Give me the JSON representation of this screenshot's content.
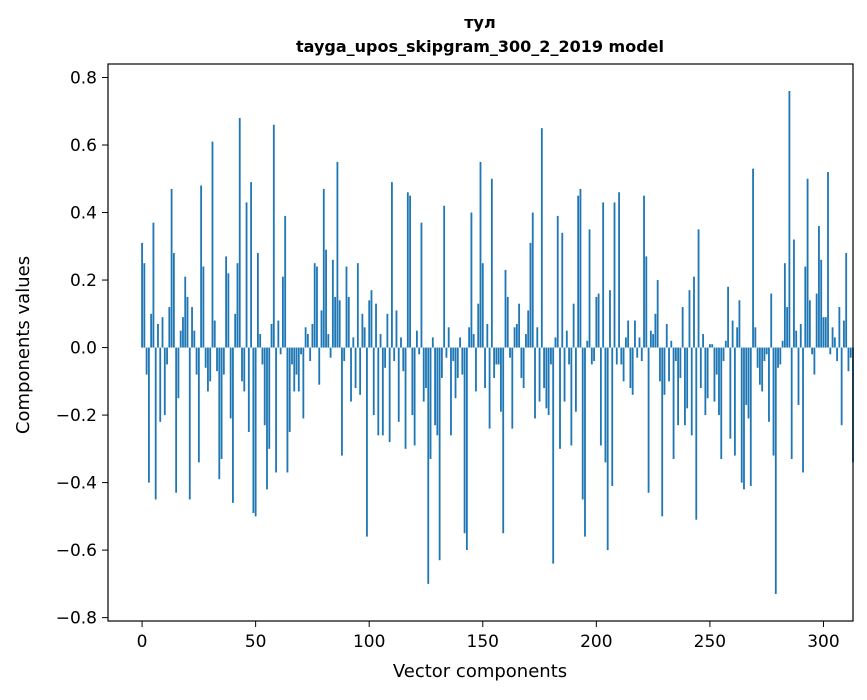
{
  "chart_data": {
    "type": "bar",
    "title": "тул",
    "subtitle": "tayga_upos_skipgram_300_2_2019 model",
    "xlabel": "Vector components",
    "ylabel": "Components values",
    "xlim": [
      -15,
      313
    ],
    "ylim": [
      -0.81,
      0.84
    ],
    "xticks": [
      0,
      50,
      100,
      150,
      200,
      250,
      300
    ],
    "xtick_labels": [
      "0",
      "50",
      "100",
      "150",
      "200",
      "250",
      "300"
    ],
    "yticks": [
      -0.8,
      -0.6,
      -0.4,
      -0.2,
      0.0,
      0.2,
      0.4,
      0.6,
      0.8
    ],
    "ytick_labels": [
      "−0.8",
      "−0.6",
      "−0.4",
      "−0.2",
      "0.0",
      "0.2",
      "0.4",
      "0.6",
      "0.8"
    ],
    "grid": false,
    "bar_color": "#1f77b4",
    "series": [
      {
        "values": [
          0.31,
          0.25,
          -0.08,
          -0.4,
          0.1,
          0.37,
          -0.45,
          0.07,
          -0.22,
          0.09,
          -0.2,
          -0.05,
          0.12,
          0.47,
          0.28,
          -0.43,
          -0.15,
          0.05,
          0.09,
          0.21,
          0.15,
          -0.45,
          0.12,
          0.05,
          -0.08,
          -0.34,
          0.48,
          0.24,
          -0.06,
          -0.13,
          -0.1,
          0.61,
          0.08,
          -0.07,
          -0.39,
          -0.33,
          -0.08,
          0.27,
          0.22,
          -0.21,
          -0.46,
          0.1,
          0.25,
          0.68,
          -0.1,
          -0.13,
          0.43,
          -0.25,
          0.49,
          -0.49,
          -0.5,
          0.28,
          0.04,
          -0.05,
          -0.23,
          -0.42,
          -0.3,
          0.07,
          0.66,
          -0.37,
          0.08,
          -0.02,
          0.21,
          0.39,
          -0.37,
          -0.25,
          -0.05,
          -0.13,
          -0.08,
          -0.13,
          -0.02,
          -0.21,
          0.06,
          0.04,
          -0.04,
          0.07,
          0.25,
          0.24,
          -0.11,
          0.11,
          0.47,
          0.29,
          0.04,
          -0.03,
          0.26,
          0.15,
          0.55,
          0.14,
          -0.32,
          -0.04,
          0.24,
          0.15,
          -0.16,
          0.03,
          -0.12,
          0.25,
          -0.14,
          0.1,
          0.06,
          -0.56,
          0.14,
          0.17,
          -0.2,
          0.13,
          -0.26,
          0.04,
          -0.26,
          -0.06,
          0.1,
          -0.28,
          0.49,
          -0.04,
          0.11,
          -0.22,
          0.03,
          -0.07,
          -0.3,
          0.46,
          0.45,
          -0.2,
          -0.29,
          0.05,
          -0.02,
          0.37,
          -0.16,
          -0.12,
          -0.7,
          -0.33,
          0.03,
          -0.23,
          -0.26,
          -0.63,
          -0.09,
          0.42,
          -0.03,
          0.06,
          -0.26,
          -0.04,
          -0.15,
          -0.09,
          0.03,
          -0.08,
          -0.55,
          -0.6,
          0.06,
          0.4,
          0.04,
          -0.13,
          0.13,
          0.55,
          0.25,
          -0.12,
          0.07,
          -0.24,
          0.5,
          -0.09,
          -0.05,
          -0.05,
          -0.19,
          -0.55,
          0.23,
          0.15,
          -0.03,
          -0.24,
          0.06,
          0.07,
          0.13,
          -0.09,
          -0.12,
          0.04,
          0.11,
          0.31,
          0.4,
          -0.21,
          0.06,
          -0.16,
          0.65,
          -0.12,
          -0.18,
          -0.2,
          -0.05,
          -0.64,
          0.03,
          0.39,
          -0.3,
          0.34,
          -0.16,
          0.05,
          -0.05,
          -0.29,
          0.13,
          -0.19,
          0.45,
          0.47,
          -0.45,
          -0.56,
          0.02,
          0.35,
          -0.05,
          -0.04,
          0.15,
          0.16,
          -0.29,
          0.43,
          -0.34,
          -0.6,
          0.17,
          -0.41,
          0.43,
          -0.05,
          0.46,
          -0.05,
          -0.1,
          0.03,
          0.08,
          -0.12,
          -0.14,
          0.08,
          -0.03,
          0.03,
          -0.04,
          0.45,
          0.27,
          -0.43,
          0.05,
          0.04,
          0.1,
          0.2,
          -0.1,
          -0.5,
          -0.14,
          0.07,
          -0.1,
          0.02,
          -0.33,
          -0.04,
          -0.23,
          -0.09,
          0.12,
          -0.23,
          -0.18,
          0.17,
          -0.26,
          0.21,
          -0.51,
          0.35,
          -0.12,
          0.04,
          -0.2,
          -0.15,
          0.01,
          0.01,
          -0.16,
          -0.08,
          -0.2,
          -0.33,
          -0.04,
          0.02,
          0.18,
          -0.27,
          0.08,
          -0.32,
          0.06,
          0.14,
          -0.4,
          -0.42,
          -0.17,
          -0.21,
          -0.41,
          0.53,
          0.06,
          -0.06,
          -0.11,
          -0.13,
          -0.04,
          -0.02,
          -0.22,
          0.16,
          -0.32,
          -0.73,
          -0.06,
          -0.05,
          0.02,
          0.25,
          0.12,
          0.76,
          -0.33,
          0.32,
          0.05,
          -0.17,
          0.07,
          -0.37,
          0.24,
          0.5,
          0.14,
          -0.02,
          -0.08,
          0.16,
          0.36,
          0.26,
          0.09,
          0.09,
          0.52,
          -0.02,
          0.06,
          0.03,
          -0.04,
          0.12,
          -0.23,
          0.08,
          0.28,
          -0.07,
          -0.03,
          -0.34
        ]
      }
    ]
  }
}
